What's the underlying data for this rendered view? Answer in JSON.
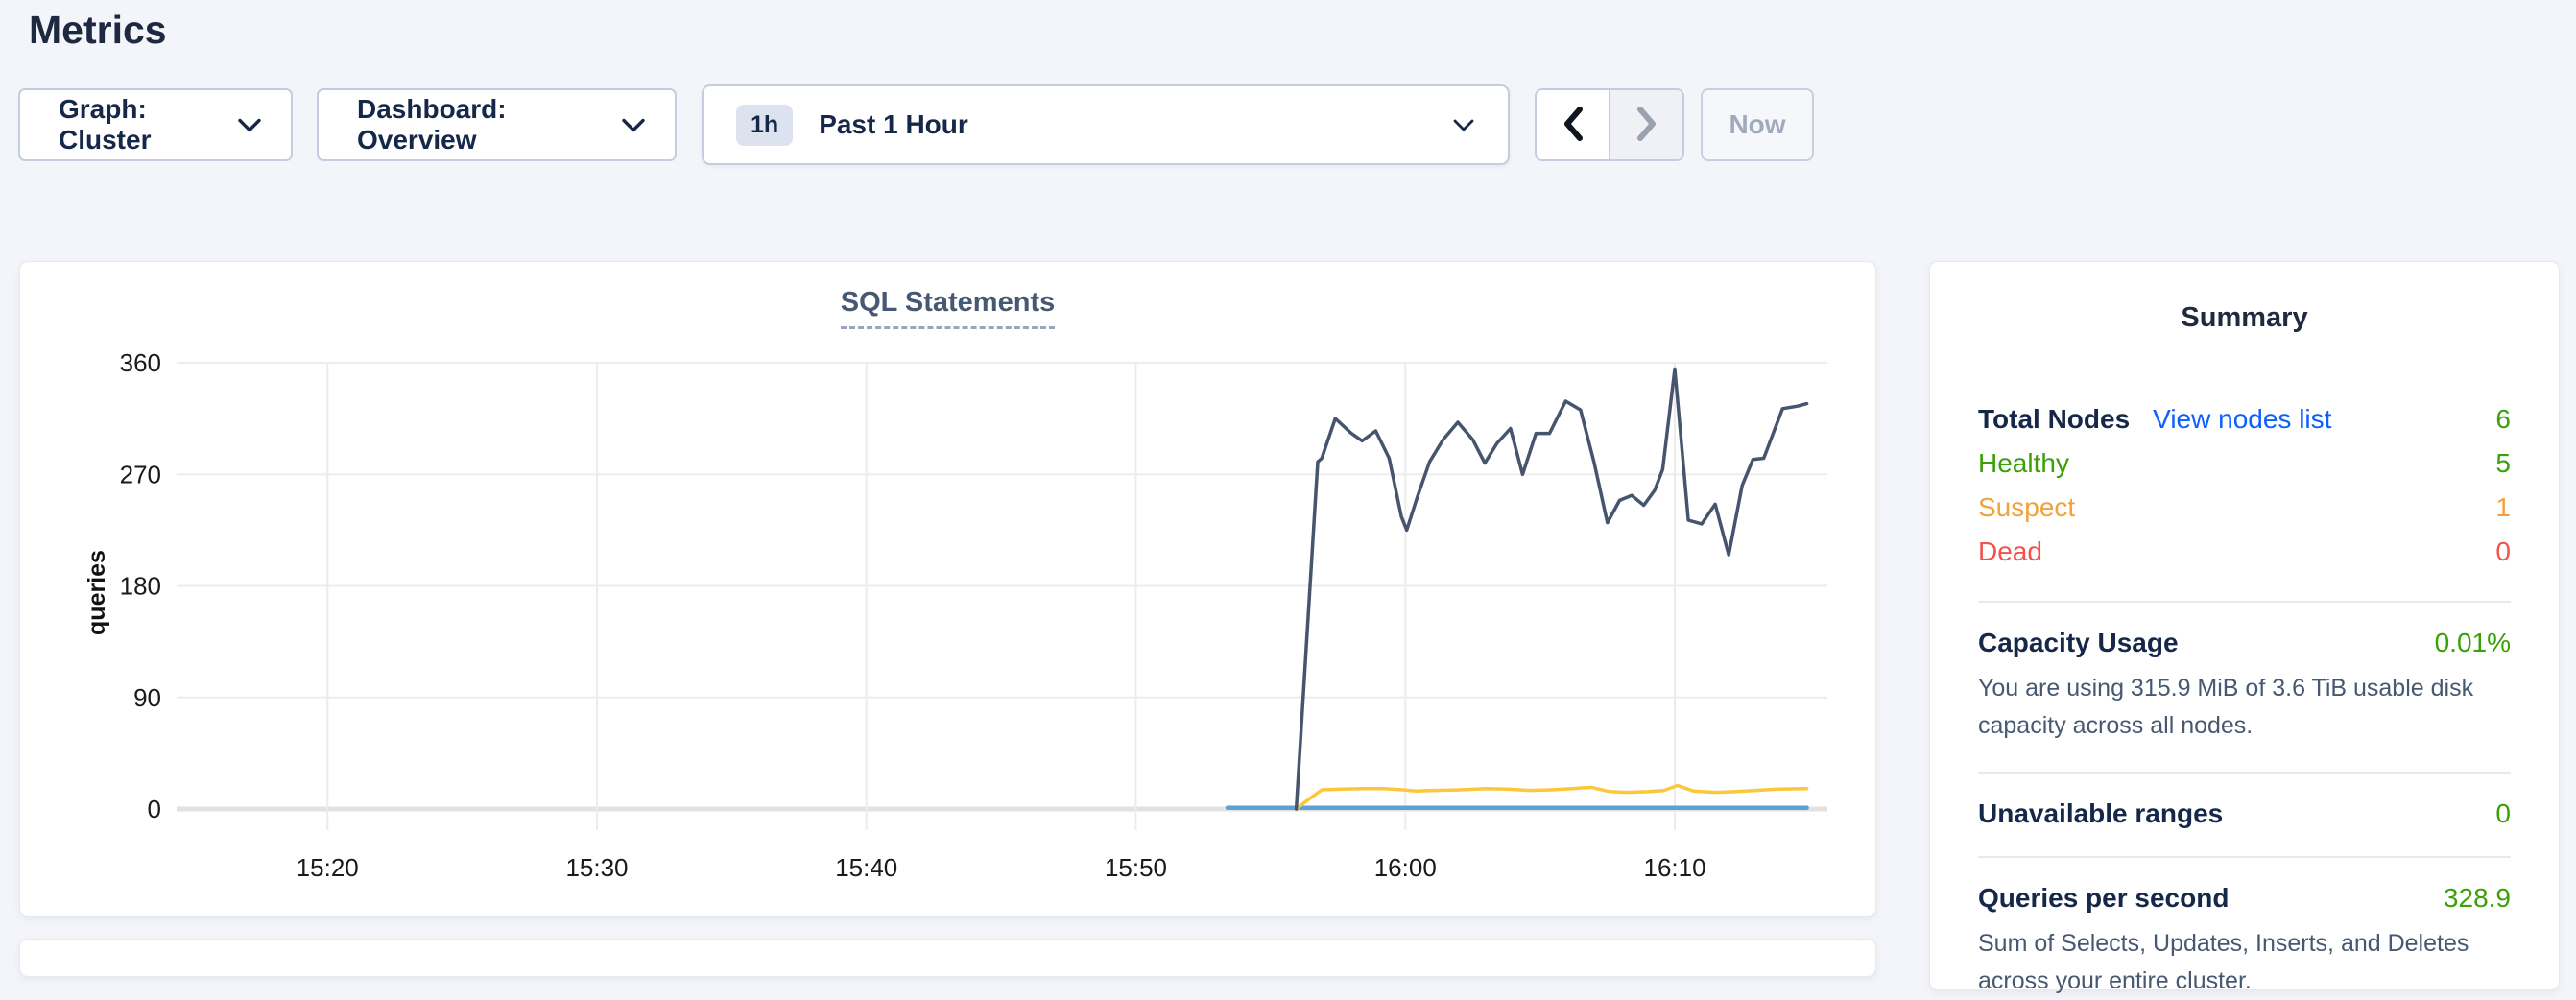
{
  "page": {
    "title": "Metrics"
  },
  "toolbar": {
    "graph_dropdown_label": "Graph: Cluster",
    "dashboard_dropdown_label": "Dashboard: Overview",
    "time_badge": "1h",
    "time_label": "Past 1 Hour",
    "now_label": "Now"
  },
  "chart_card": {
    "title": "SQL Statements",
    "chart_data": {
      "type": "line",
      "title": "SQL Statements",
      "xlabel": "",
      "ylabel": "queries",
      "x_unit": "time (HH:MM), minutes encoded as minutes after 15:00",
      "xlim": [
        14.4,
        74.95
      ],
      "ylim": [
        0,
        375
      ],
      "grid": true,
      "legend_position": "none",
      "x_ticks": [
        {
          "t": 20,
          "label": "15:20"
        },
        {
          "t": 30,
          "label": "15:30"
        },
        {
          "t": 40,
          "label": "15:40"
        },
        {
          "t": 50,
          "label": "15:50"
        },
        {
          "t": 60,
          "label": "16:00"
        },
        {
          "t": 70,
          "label": "16:10"
        }
      ],
      "y_ticks": [
        {
          "v": 0,
          "label": "0"
        },
        {
          "v": 90,
          "label": "90"
        },
        {
          "v": 180,
          "label": "180"
        },
        {
          "v": 270,
          "label": "270"
        },
        {
          "v": 360,
          "label": "360"
        }
      ],
      "series": [
        {
          "name": "series-dark",
          "color": "#46546e",
          "width": 3.5,
          "points": [
            [
              55.95,
              0
            ],
            [
              56.75,
              280
            ],
            [
              56.9,
              283
            ],
            [
              57.4,
              315
            ],
            [
              58.0,
              303
            ],
            [
              58.4,
              297
            ],
            [
              58.9,
              305
            ],
            [
              59.4,
              283
            ],
            [
              59.85,
              236
            ],
            [
              60.05,
              225
            ],
            [
              60.45,
              252
            ],
            [
              60.9,
              280
            ],
            [
              61.4,
              298
            ],
            [
              61.95,
              312
            ],
            [
              62.5,
              298
            ],
            [
              62.95,
              279
            ],
            [
              63.4,
              295
            ],
            [
              63.9,
              307
            ],
            [
              64.35,
              270
            ],
            [
              64.85,
              303
            ],
            [
              65.35,
              303
            ],
            [
              65.95,
              329
            ],
            [
              66.5,
              322
            ],
            [
              67.0,
              280
            ],
            [
              67.5,
              231
            ],
            [
              67.95,
              249
            ],
            [
              68.4,
              253
            ],
            [
              68.85,
              245
            ],
            [
              69.25,
              257
            ],
            [
              69.55,
              274
            ],
            [
              70.0,
              355
            ],
            [
              70.5,
              233
            ],
            [
              71.0,
              230
            ],
            [
              71.5,
              246
            ],
            [
              72.0,
              205
            ],
            [
              72.5,
              261
            ],
            [
              72.9,
              282
            ],
            [
              73.3,
              283
            ],
            [
              74.0,
              323
            ],
            [
              74.55,
              325
            ],
            [
              74.9,
              327
            ]
          ]
        },
        {
          "name": "series-yellow",
          "color": "#fcc83a",
          "width": 3.5,
          "points": [
            [
              55.95,
              0
            ],
            [
              56.3,
              6
            ],
            [
              56.9,
              15.5
            ],
            [
              57.6,
              16
            ],
            [
              58.4,
              16.5
            ],
            [
              59.2,
              16.5
            ],
            [
              59.9,
              15.5
            ],
            [
              60.4,
              14.5
            ],
            [
              61.1,
              15
            ],
            [
              62.0,
              15.5
            ],
            [
              63.0,
              16.5
            ],
            [
              63.8,
              16
            ],
            [
              64.6,
              15
            ],
            [
              65.4,
              15.5
            ],
            [
              66.2,
              16.5
            ],
            [
              66.9,
              17.5
            ],
            [
              67.6,
              14
            ],
            [
              68.3,
              13.5
            ],
            [
              69.0,
              14
            ],
            [
              69.6,
              15
            ],
            [
              70.1,
              19
            ],
            [
              70.7,
              14.5
            ],
            [
              71.5,
              13.5
            ],
            [
              72.2,
              14
            ],
            [
              73.0,
              15
            ],
            [
              73.8,
              16
            ],
            [
              74.9,
              16.5
            ]
          ]
        },
        {
          "name": "series-blue",
          "color": "#59a1d6",
          "width": 4.5,
          "points": [
            [
              53.4,
              1
            ],
            [
              74.9,
              1
            ]
          ]
        }
      ]
    }
  },
  "summary": {
    "heading": "Summary",
    "rows": [
      {
        "label": "Total Nodes",
        "link": "View nodes list",
        "value": "6"
      },
      {
        "label": "Healthy",
        "value": "5"
      },
      {
        "label": "Suspect",
        "value": "1"
      },
      {
        "label": "Dead",
        "value": "0"
      }
    ],
    "sections": [
      {
        "title": "Capacity Usage",
        "value": "0.01%",
        "desc": "You are using 315.9 MiB of 3.6 TiB usable disk capacity across all nodes."
      },
      {
        "title": "Unavailable ranges",
        "value": "0",
        "desc": ""
      },
      {
        "title": "Queries per second",
        "value": "328.9",
        "desc": "Sum of Selects, Updates, Inserts, and Deletes across your entire cluster."
      }
    ],
    "colors": {
      "green": "#3aa008",
      "orange": "#f1a23b",
      "red": "#f3504e",
      "link_blue": "#0b5fff"
    }
  }
}
